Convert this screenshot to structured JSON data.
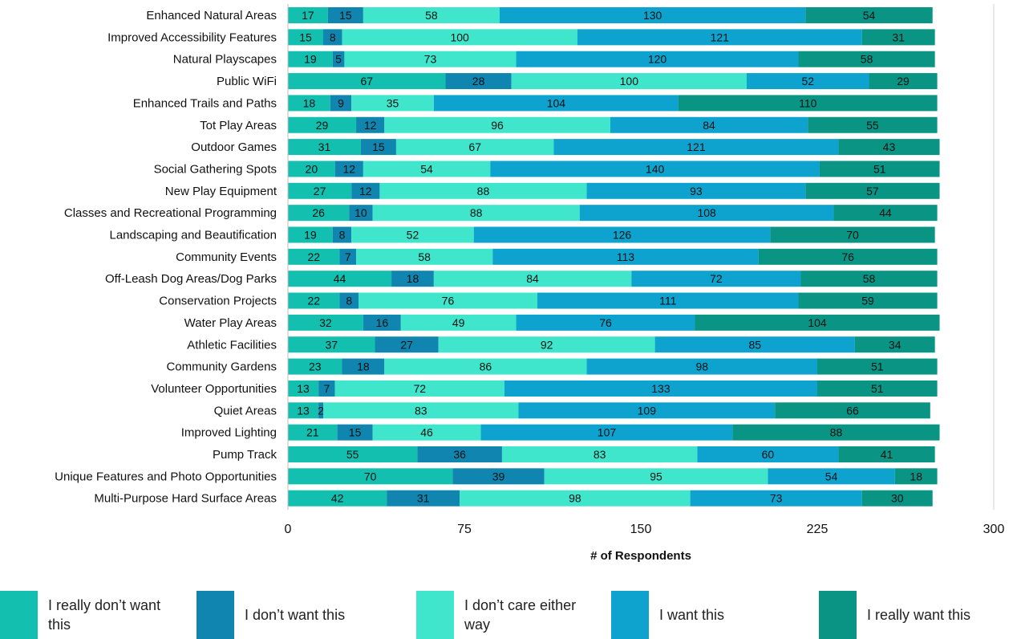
{
  "chart_data": {
    "type": "bar",
    "orientation": "horizontal",
    "stacked": true,
    "xlabel": "# of Respondents",
    "xlim": [
      0,
      300
    ],
    "xticks": [
      0,
      75,
      150,
      225,
      300
    ],
    "grid": false,
    "legend_position": "bottom",
    "categories": [
      "Enhanced Natural Areas",
      "Improved Accessibility Features",
      "Natural Playscapes",
      "Public WiFi",
      "Enhanced Trails and Paths",
      "Tot Play Areas",
      "Outdoor Games",
      "Social Gathering Spots",
      "New Play Equipment",
      "Classes and Recreational Programming",
      "Landscaping and Beautification",
      "Community Events",
      "Off-Leash Dog Areas/Dog Parks",
      "Conservation Projects",
      "Water Play Areas",
      "Athletic Facilities",
      "Community Gardens",
      "Volunteer Opportunities",
      "Quiet Areas",
      "Improved Lighting",
      "Pump Track",
      "Unique Features and Photo Opportunities",
      "Multi-Purpose Hard Surface Areas"
    ],
    "series": [
      {
        "name": "I really don’t want this",
        "color": "#13bfae",
        "values": [
          17,
          15,
          19,
          67,
          18,
          29,
          31,
          20,
          27,
          26,
          19,
          22,
          44,
          22,
          32,
          37,
          23,
          13,
          13,
          21,
          55,
          70,
          42
        ]
      },
      {
        "name": "I don’t want this",
        "color": "#0f85b0",
        "values": [
          15,
          8,
          5,
          28,
          9,
          12,
          15,
          12,
          12,
          10,
          8,
          7,
          18,
          8,
          16,
          27,
          18,
          7,
          2,
          15,
          36,
          39,
          31
        ]
      },
      {
        "name": "I don’t care either way",
        "color": "#40e6cc",
        "values": [
          58,
          100,
          73,
          100,
          35,
          96,
          67,
          54,
          88,
          88,
          52,
          58,
          84,
          76,
          49,
          92,
          86,
          72,
          83,
          46,
          83,
          95,
          98
        ]
      },
      {
        "name": "I want this",
        "color": "#0ea3cf",
        "values": [
          130,
          121,
          120,
          52,
          104,
          84,
          121,
          140,
          93,
          108,
          126,
          113,
          72,
          111,
          76,
          85,
          98,
          133,
          109,
          107,
          60,
          54,
          73
        ]
      },
      {
        "name": "I really want this",
        "color": "#0a9484",
        "values": [
          54,
          31,
          58,
          29,
          110,
          55,
          43,
          51,
          57,
          44,
          70,
          76,
          58,
          59,
          104,
          34,
          51,
          51,
          66,
          88,
          41,
          18,
          30
        ]
      }
    ]
  }
}
